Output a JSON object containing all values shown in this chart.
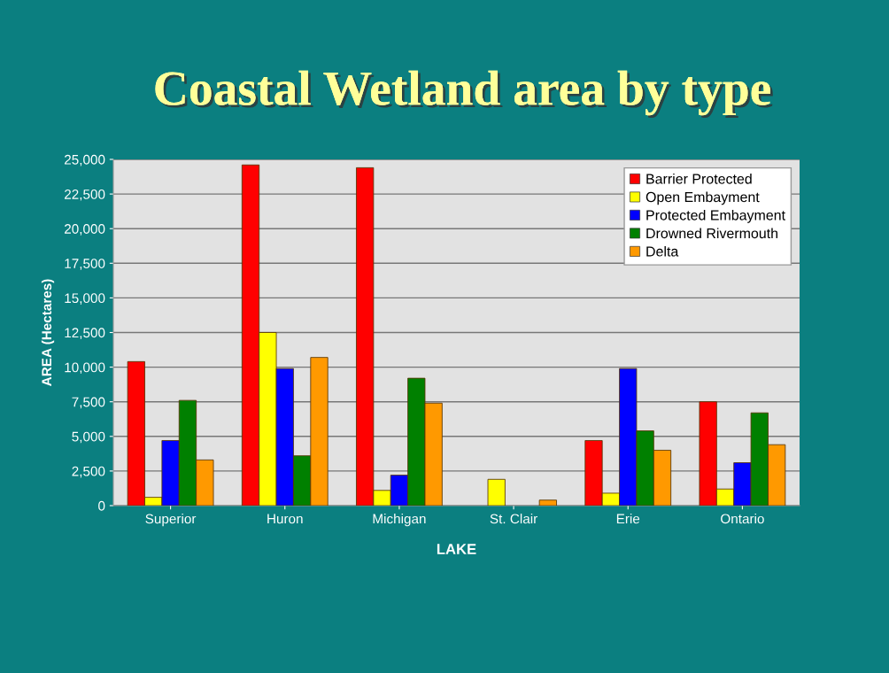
{
  "chart_data": {
    "type": "bar",
    "title": "Coastal Wetland area by type",
    "xlabel": "LAKE",
    "ylabel": "AREA (Hectares)",
    "categories": [
      "Superior",
      "Huron",
      "Michigan",
      "St. Clair",
      "Erie",
      "Ontario"
    ],
    "series": [
      {
        "name": "Barrier Protected",
        "color": "#ff0000",
        "values": [
          10400,
          24600,
          24400,
          0,
          4700,
          7500
        ]
      },
      {
        "name": "Open Embayment",
        "color": "#ffff00",
        "values": [
          600,
          12500,
          1100,
          1900,
          900,
          1200
        ]
      },
      {
        "name": "Protected Embayment",
        "color": "#0000ff",
        "values": [
          4700,
          9900,
          2200,
          0,
          9900,
          3100
        ]
      },
      {
        "name": "Drowned Rivermouth",
        "color": "#008000",
        "values": [
          7600,
          3600,
          9200,
          0,
          5400,
          6700
        ]
      },
      {
        "name": "Delta",
        "color": "#ff9900",
        "values": [
          3300,
          10700,
          7400,
          400,
          4000,
          4400
        ]
      }
    ],
    "ylim": [
      0,
      25000
    ],
    "yticks": [
      {
        "value": 0,
        "label": "0"
      },
      {
        "value": 2500,
        "label": "2,500"
      },
      {
        "value": 5000,
        "label": "5,000"
      },
      {
        "value": 7500,
        "label": "7,500"
      },
      {
        "value": 10000,
        "label": "10,000"
      },
      {
        "value": 12500,
        "label": "12,500"
      },
      {
        "value": 15000,
        "label": "15,000"
      },
      {
        "value": 17500,
        "label": "17,500"
      },
      {
        "value": 20000,
        "label": "20,000"
      },
      {
        "value": 22500,
        "label": "22,500"
      },
      {
        "value": 25000,
        "label": "25,000"
      }
    ],
    "grid": "y",
    "legend": "top right"
  }
}
